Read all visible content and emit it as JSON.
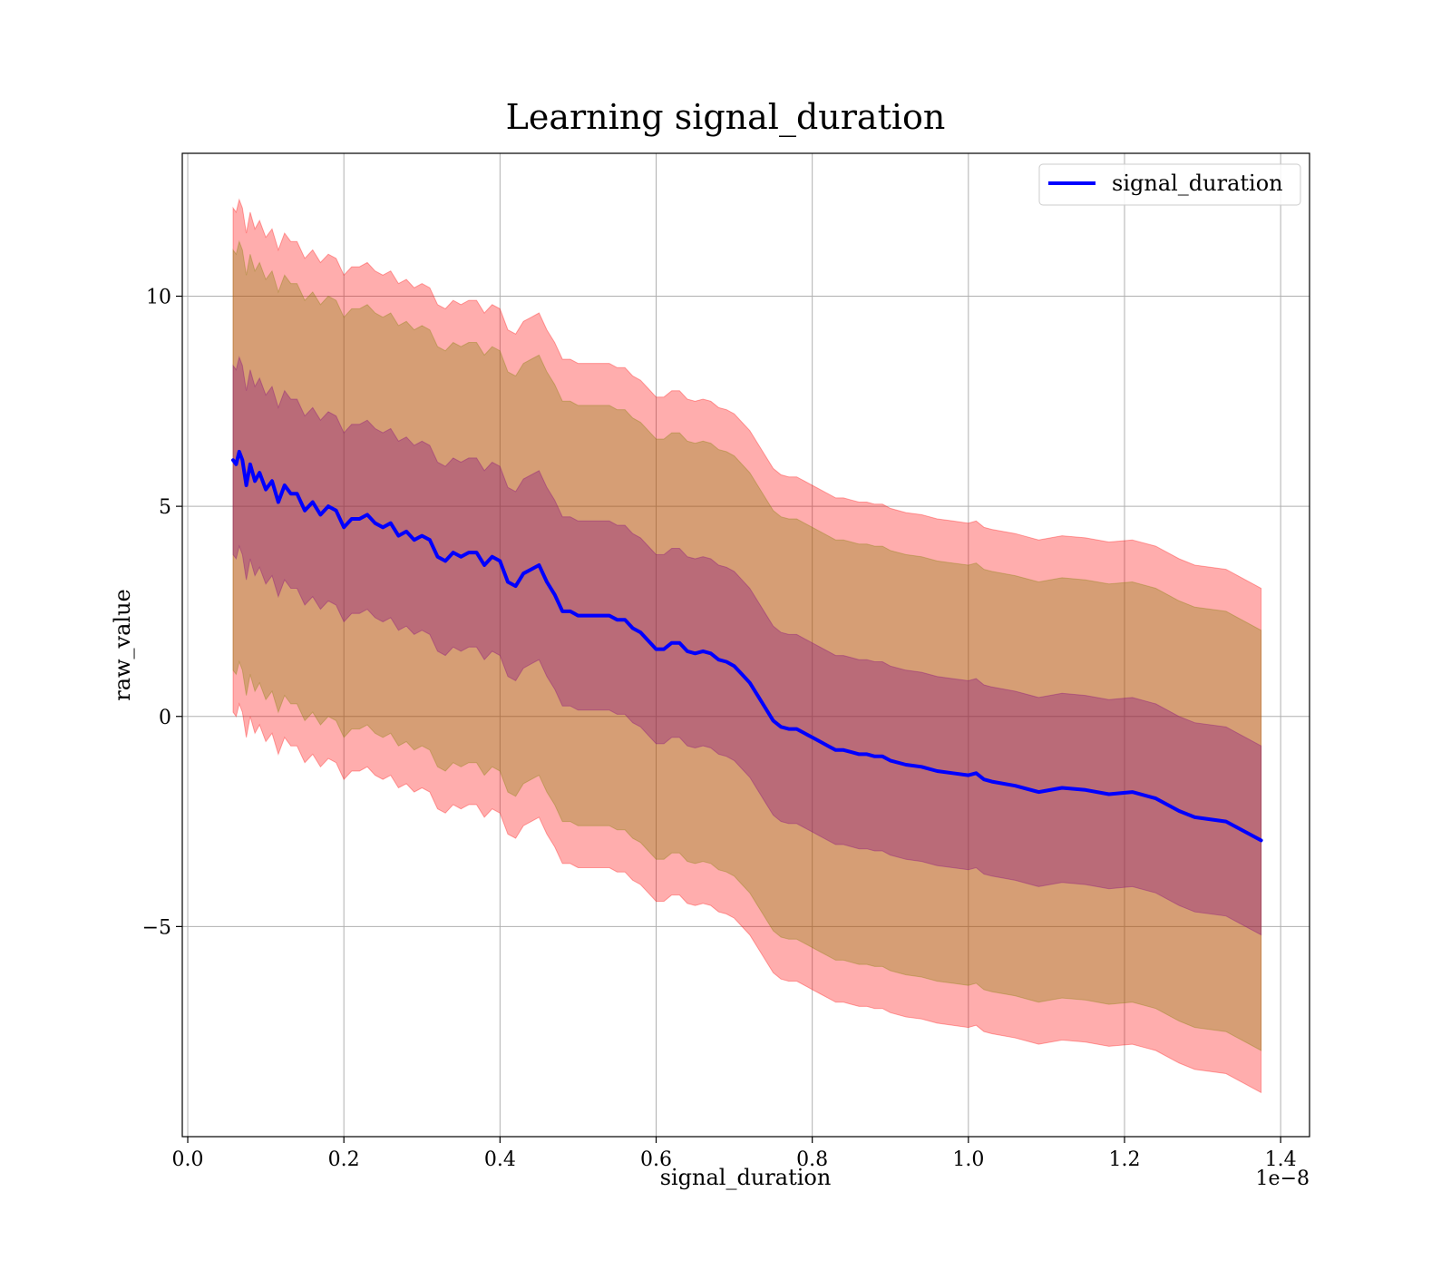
{
  "chart_data": {
    "type": "line",
    "title": "Learning signal_duration",
    "xlabel": "signal_duration",
    "ylabel": "raw_value",
    "x_offset_text": "1e−8",
    "xlim": [
      -0.007,
      1.437
    ],
    "ylim": [
      -10.0,
      13.4
    ],
    "x_ticks": [
      0.0,
      0.2,
      0.4,
      0.6,
      0.8,
      1.0,
      1.2,
      1.4
    ],
    "x_tick_labels": [
      "0.0",
      "0.2",
      "0.4",
      "0.6",
      "0.8",
      "1.0",
      "1.2",
      "1.4"
    ],
    "y_ticks": [
      -5,
      0,
      5,
      10
    ],
    "y_tick_labels": [
      "−5",
      "0",
      "5",
      "10"
    ],
    "grid": true,
    "legend_position": "top-right",
    "series": [
      {
        "name": "signal_duration",
        "color": "#0000ff",
        "x": [
          0.058,
          0.062,
          0.066,
          0.07,
          0.075,
          0.08,
          0.086,
          0.092,
          0.1,
          0.108,
          0.116,
          0.124,
          0.132,
          0.14,
          0.15,
          0.16,
          0.17,
          0.18,
          0.19,
          0.2,
          0.21,
          0.22,
          0.23,
          0.24,
          0.25,
          0.26,
          0.27,
          0.28,
          0.29,
          0.3,
          0.31,
          0.32,
          0.33,
          0.34,
          0.35,
          0.36,
          0.37,
          0.38,
          0.39,
          0.4,
          0.41,
          0.42,
          0.43,
          0.44,
          0.45,
          0.46,
          0.47,
          0.48,
          0.49,
          0.5,
          0.51,
          0.52,
          0.53,
          0.54,
          0.55,
          0.56,
          0.57,
          0.58,
          0.59,
          0.6,
          0.61,
          0.62,
          0.63,
          0.64,
          0.65,
          0.66,
          0.67,
          0.68,
          0.69,
          0.7,
          0.71,
          0.72,
          0.73,
          0.74,
          0.75,
          0.76,
          0.77,
          0.78,
          0.79,
          0.8,
          0.81,
          0.82,
          0.83,
          0.84,
          0.85,
          0.86,
          0.87,
          0.88,
          0.89,
          0.9,
          0.92,
          0.94,
          0.96,
          0.98,
          1.0,
          1.01,
          1.02,
          1.03,
          1.06,
          1.09,
          1.12,
          1.15,
          1.18,
          1.21,
          1.24,
          1.27,
          1.29,
          1.33,
          1.375
        ],
        "y": [
          6.1,
          6.0,
          6.3,
          6.1,
          5.5,
          6.0,
          5.6,
          5.8,
          5.4,
          5.6,
          5.1,
          5.5,
          5.3,
          5.3,
          4.9,
          5.1,
          4.8,
          5.0,
          4.9,
          4.5,
          4.7,
          4.7,
          4.8,
          4.6,
          4.5,
          4.6,
          4.3,
          4.4,
          4.2,
          4.3,
          4.2,
          3.8,
          3.7,
          3.9,
          3.8,
          3.9,
          3.9,
          3.6,
          3.8,
          3.7,
          3.2,
          3.1,
          3.4,
          3.5,
          3.6,
          3.2,
          2.9,
          2.5,
          2.5,
          2.4,
          2.4,
          2.4,
          2.4,
          2.4,
          2.3,
          2.3,
          2.1,
          2.0,
          1.8,
          1.6,
          1.6,
          1.75,
          1.75,
          1.55,
          1.5,
          1.55,
          1.5,
          1.35,
          1.3,
          1.2,
          1.0,
          0.8,
          0.5,
          0.2,
          -0.1,
          -0.25,
          -0.3,
          -0.3,
          -0.4,
          -0.5,
          -0.6,
          -0.7,
          -0.8,
          -0.8,
          -0.85,
          -0.9,
          -0.9,
          -0.95,
          -0.95,
          -1.05,
          -1.15,
          -1.2,
          -1.3,
          -1.35,
          -1.4,
          -1.35,
          -1.5,
          -1.55,
          -1.65,
          -1.8,
          -1.7,
          -1.75,
          -1.85,
          -1.8,
          -1.95,
          -2.25,
          -2.4,
          -2.5,
          -2.95
        ]
      }
    ],
    "bands": [
      {
        "color": "#ff0000",
        "opacity": 0.32,
        "lower_offset": -6.0,
        "upper_offset": 6.0
      },
      {
        "color": "#808000",
        "opacity": 0.32,
        "lower_offset": -5.0,
        "upper_offset": 5.0
      },
      {
        "color": "#800080",
        "opacity": 0.32,
        "lower_offset": -2.25,
        "upper_offset": 2.25
      }
    ]
  }
}
